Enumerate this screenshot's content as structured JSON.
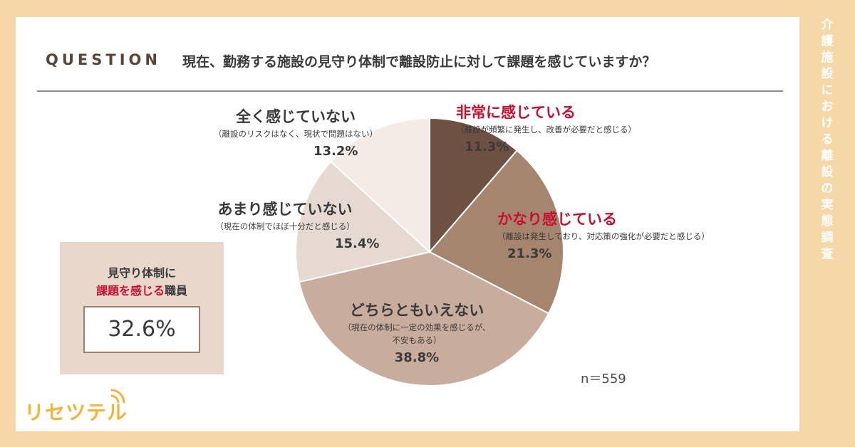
{
  "side_title": "介護施設における離設の実態調査",
  "question": {
    "label": "QUESTION",
    "text": "現在、勤務する施設の見守り体制で離設防止に対して課題を感じていますか？"
  },
  "chart_data": {
    "type": "pie",
    "title": "",
    "slices": [
      {
        "label": "非常に感じている",
        "note": "（離設が頻繁に発生し、改善が必要だと感じる）",
        "pct_label": "11.3%",
        "value": 11.3,
        "color": "#6E5142"
      },
      {
        "label": "かなり感じている",
        "note": "（離設は発生しており、対応策の強化が必要だと感じる）",
        "pct_label": "21.3%",
        "value": 21.3,
        "color": "#A6856F"
      },
      {
        "label": "どちらともいえない",
        "note1": "（現在の体制に一定の効果を感じるが、",
        "note2": "不安もある）",
        "pct_label": "38.8%",
        "value": 38.8,
        "color": "#C8AD9D"
      },
      {
        "label": "あまり感じていない",
        "note": "（現在の体制でほぼ十分だと感じる）",
        "pct_label": "15.4%",
        "value": 15.4,
        "color": "#E6D9D1"
      },
      {
        "label": "全く感じていない",
        "note": "（離設のリスクはなく、現状で問題はない）",
        "pct_label": "13.2%",
        "value": 13.2,
        "color": "#F4EAE6"
      }
    ]
  },
  "summary": {
    "line1": "見守り体制に",
    "line2_red": "課題を感じる",
    "line2_rest": "職員",
    "value": "32.6%"
  },
  "n_label": "n＝559",
  "logo": "リセツテル"
}
